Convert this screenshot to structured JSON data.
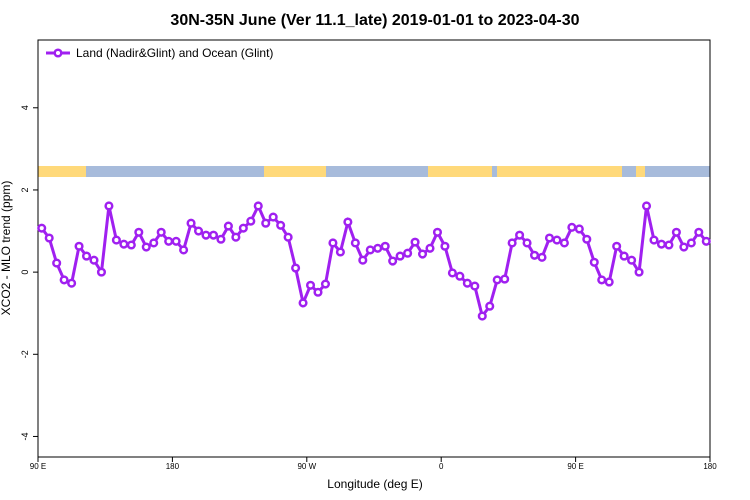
{
  "chart_data": {
    "type": "line",
    "title": "30N-35N June (Ver 11.1_late)   2019-01-01 to 2023-04-30",
    "xlabel": "Longitude (deg E)",
    "ylabel": "XCO2 - MLO trend (ppm)",
    "x": [
      92.5,
      97.5,
      102.5,
      107.5,
      112.5,
      117.5,
      122.5,
      127.5,
      132.5,
      137.5,
      142.5,
      147.5,
      152.5,
      157.5,
      162.5,
      167.5,
      172.5,
      177.5,
      182.5,
      187.5,
      192.5,
      197.5,
      202.5,
      207.5,
      212.5,
      217.5,
      222.5,
      227.5,
      232.5,
      237.5,
      242.5,
      247.5,
      252.5,
      257.5,
      262.5,
      267.5,
      272.5,
      277.5,
      282.5,
      287.5,
      292.5,
      297.5,
      302.5,
      307.5,
      312.5,
      317.5,
      322.5,
      327.5,
      332.5,
      337.5,
      342.5,
      347.5,
      352.5,
      357.5,
      362.5,
      367.5,
      372.5,
      377.5,
      382.5,
      387.5,
      392.5,
      397.5,
      402.5,
      407.5,
      412.5,
      417.5,
      422.5,
      427.5,
      432.5,
      437.5,
      442.5,
      447.5,
      452.5,
      457.5,
      462.5,
      467.5,
      472.5,
      477.5,
      482.5,
      487.5,
      492.5,
      497.5,
      502.5,
      507.5,
      512.5,
      517.5,
      522.5,
      527.5,
      532.5,
      537.5
    ],
    "series": [
      {
        "name": "Land (Nadir&Glint) and Ocean (Glint)",
        "color": "#a020f0",
        "values": [
          1.07,
          0.83,
          0.22,
          -0.19,
          -0.27,
          0.63,
          0.39,
          0.29,
          0.0,
          1.61,
          0.78,
          0.68,
          0.66,
          0.97,
          0.61,
          0.71,
          0.97,
          0.75,
          0.75,
          0.54,
          1.19,
          1.0,
          0.9,
          0.9,
          0.8,
          1.12,
          0.85,
          1.07,
          1.24,
          1.61,
          1.19,
          1.34,
          1.14,
          0.85,
          0.1,
          -0.75,
          -0.32,
          -0.49,
          -0.29,
          0.71,
          0.49,
          1.22,
          0.71,
          0.29,
          0.54,
          0.58,
          0.63,
          0.27,
          0.39,
          0.46,
          0.73,
          0.44,
          0.58,
          0.97,
          0.63,
          -0.02,
          -0.1,
          -0.27,
          -0.34,
          -1.07,
          -0.83,
          -0.19,
          -0.17,
          0.71,
          0.9,
          0.71,
          0.41,
          0.36,
          0.83,
          0.78,
          0.71,
          1.09,
          1.05,
          0.8,
          0.24,
          -0.19,
          -0.24,
          0.63,
          0.39,
          0.29,
          0.0,
          1.61,
          0.78,
          0.68,
          0.66,
          0.97,
          0.61,
          0.71,
          0.97,
          0.75
        ]
      }
    ],
    "xlim": [
      90,
      540
    ],
    "xticks": [
      {
        "value": 90,
        "label": "90 E"
      },
      {
        "value": 180,
        "label": "180"
      },
      {
        "value": 270,
        "label": "90 W"
      },
      {
        "value": 360,
        "label": "0"
      },
      {
        "value": 450,
        "label": "90 E"
      },
      {
        "value": 540,
        "label": "180"
      }
    ],
    "ylim": [
      -4.5,
      5.65
    ],
    "yticks": [
      -4,
      -2,
      0,
      2,
      4
    ],
    "legend": "top-left"
  }
}
